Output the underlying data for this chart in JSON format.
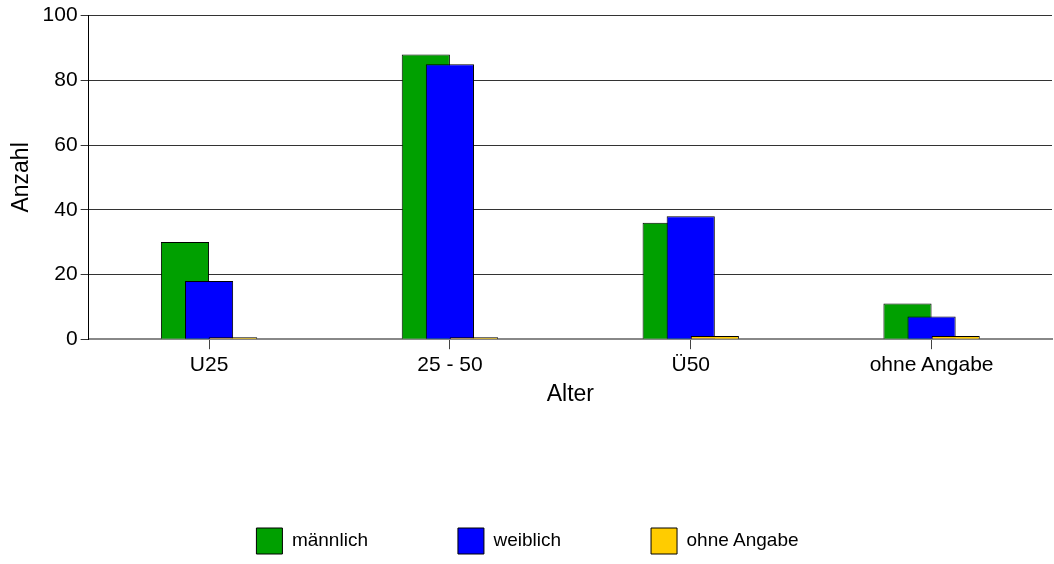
{
  "chart_data": {
    "type": "bar",
    "xlabel": "Alter",
    "ylabel": "Anzahl",
    "categories": [
      "U25",
      "25 - 50",
      "Ü50",
      "ohne Angabe"
    ],
    "series": [
      {
        "name": "männlich",
        "color": "#00a000",
        "values": [
          30,
          88,
          36,
          11
        ]
      },
      {
        "name": "weiblich",
        "color": "#0000ff",
        "values": [
          18,
          85,
          38,
          7
        ]
      },
      {
        "name": "ohne Angabe",
        "color": "#ffcc00",
        "values": [
          0,
          0,
          1,
          1
        ]
      }
    ],
    "ylim": [
      0,
      100
    ],
    "yticks": [
      0,
      20,
      40,
      60,
      80,
      100
    ],
    "grid": "y",
    "legend": "bottom"
  }
}
